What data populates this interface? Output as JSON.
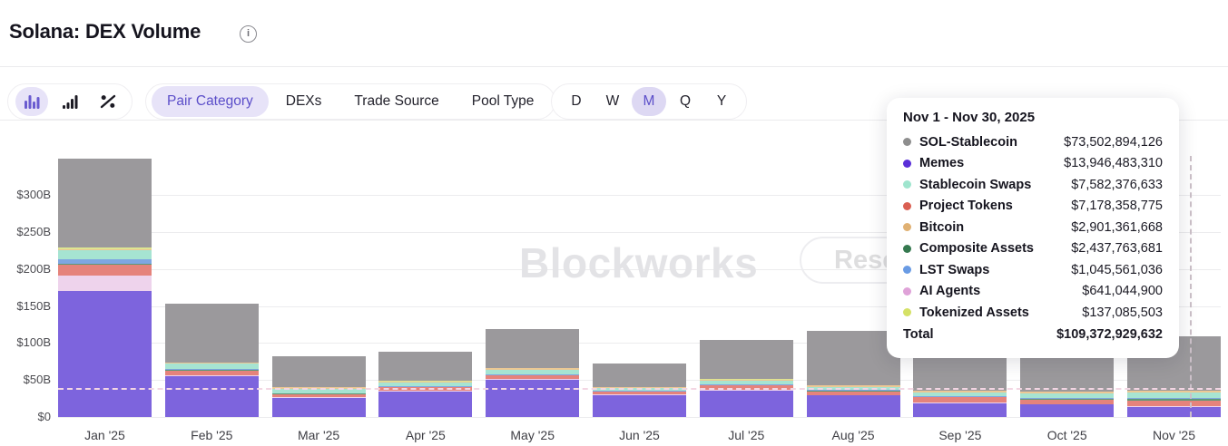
{
  "header": {
    "title": "Solana: DEX Volume",
    "info_icon": "i"
  },
  "toolbar": {
    "accent_color": "#5b4ec9",
    "accent_bg": "#e7e3f8",
    "chart_type_icons": [
      {
        "name": "stacked-bar-chart-icon",
        "selected": true
      },
      {
        "name": "bar-chart-icon",
        "selected": false
      },
      {
        "name": "percent-change-icon",
        "selected": false
      }
    ],
    "tabs": [
      {
        "label": "Pair Category",
        "selected": true
      },
      {
        "label": "DEXs",
        "selected": false
      },
      {
        "label": "Trade Source",
        "selected": false
      },
      {
        "label": "Pool Type",
        "selected": false
      }
    ],
    "periods": [
      {
        "label": "D",
        "selected": false
      },
      {
        "label": "W",
        "selected": false
      },
      {
        "label": "M",
        "selected": true
      },
      {
        "label": "Q",
        "selected": false
      },
      {
        "label": "Y",
        "selected": false
      }
    ]
  },
  "watermark": {
    "text": "Blockworks",
    "button_label": "Research"
  },
  "tooltip": {
    "title": "Nov 1 - Nov 30, 2025",
    "rows": [
      {
        "label": "SOL-Stablecoin",
        "value": "$73,502,894,126",
        "dot": "#8e8e8e"
      },
      {
        "label": "Memes",
        "value": "$13,946,483,310",
        "dot": "#5a2fd8"
      },
      {
        "label": "Stablecoin Swaps",
        "value": "$7,582,376,633",
        "dot": "#9fe5ce"
      },
      {
        "label": "Project Tokens",
        "value": "$7,178,358,775",
        "dot": "#da5f52"
      },
      {
        "label": "Bitcoin",
        "value": "$2,901,361,668",
        "dot": "#e0b173"
      },
      {
        "label": "Composite Assets",
        "value": "$2,437,763,681",
        "dot": "#35794f"
      },
      {
        "label": "LST Swaps",
        "value": "$1,045,561,036",
        "dot": "#699be4"
      },
      {
        "label": "AI Agents",
        "value": "$641,044,900",
        "dot": "#dfa2d8"
      },
      {
        "label": "Tokenized Assets",
        "value": "$137,085,503",
        "dot": "#d5e166"
      }
    ],
    "total_label": "Total",
    "total_value": "$109,372,929,632"
  },
  "chart_data": {
    "type": "bar",
    "stacked": true,
    "title": "Solana DEX Volume by Pair Category (monthly, USD billions)",
    "unit": "USD billions",
    "grid": true,
    "legend_position": "tooltip",
    "hovered_category": "Nov '25",
    "categories": [
      "Jan '25",
      "Feb '25",
      "Mar '25",
      "Apr '25",
      "May '25",
      "Jun '25",
      "Jul '25",
      "Aug '25",
      "Sep '25",
      "Oct '25",
      "Nov '25"
    ],
    "series": [
      {
        "name": "Memes",
        "color": "#7d64dd",
        "values": [
          170,
          55,
          26,
          35,
          50,
          30,
          36,
          29,
          19,
          17,
          13.95
        ]
      },
      {
        "name": "AI Agents",
        "color": "#eed3ec",
        "values": [
          22,
          2,
          1,
          1,
          1,
          0.8,
          1,
          1,
          0.6,
          0.6,
          0.64
        ]
      },
      {
        "name": "Project Tokens",
        "color": "#e5837b",
        "values": [
          14,
          6,
          4,
          4,
          5,
          3,
          6,
          5,
          7,
          6,
          7.18
        ]
      },
      {
        "name": "Composite Assets",
        "color": "#5d9878",
        "values": [
          1.5,
          0.5,
          0.5,
          0.5,
          0.5,
          0.4,
          0.5,
          0.5,
          0.6,
          0.8,
          2.44
        ]
      },
      {
        "name": "LST Swaps",
        "color": "#7fa6e2",
        "values": [
          6,
          1.5,
          1,
          1,
          1,
          0.8,
          1,
          1,
          1,
          1,
          1.05
        ]
      },
      {
        "name": "Stablecoin Swaps",
        "color": "#a6e4d2",
        "values": [
          12,
          7,
          6,
          5,
          6,
          4,
          4.5,
          4.5,
          5,
          6,
          7.58
        ]
      },
      {
        "name": "Bitcoin",
        "color": "#ecc894",
        "values": [
          2,
          1.5,
          2,
          2,
          2.5,
          1.5,
          2,
          2,
          2,
          2.5,
          2.9
        ]
      },
      {
        "name": "Tokenized Assets",
        "color": "#dee591",
        "values": [
          2.5,
          0.5,
          0.5,
          0.5,
          0.5,
          0.3,
          0.5,
          0.5,
          0.3,
          0.3,
          0.14
        ]
      },
      {
        "name": "SOL-Stablecoin",
        "color": "#9b999c",
        "values": [
          120,
          79,
          41,
          40,
          52.5,
          31.2,
          53.5,
          73.5,
          46.5,
          55,
          73.5
        ]
      }
    ],
    "y_ticks": [
      {
        "label": "$0",
        "value": 0
      },
      {
        "label": "$50B",
        "value": 50
      },
      {
        "label": "$100B",
        "value": 100
      },
      {
        "label": "$150B",
        "value": 150
      },
      {
        "label": "$200B",
        "value": 200
      },
      {
        "label": "$250B",
        "value": 250
      },
      {
        "label": "$300B",
        "value": 300
      }
    ],
    "y_max_billions": 368
  }
}
